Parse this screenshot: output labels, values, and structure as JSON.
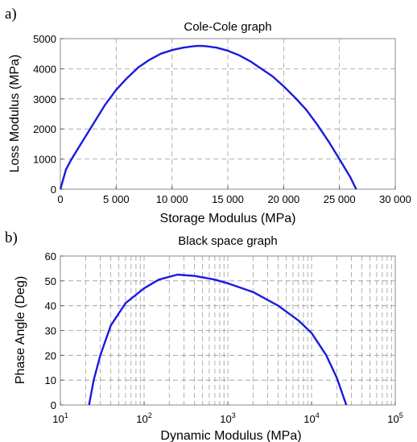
{
  "chart_data": [
    {
      "panel_label": "a)",
      "type": "line",
      "title": "Cole-Cole graph",
      "xlabel": "Storage Modulus (MPa)",
      "ylabel": "Loss Modulus (MPa)",
      "xlim": [
        0,
        30000
      ],
      "ylim": [
        0,
        5000
      ],
      "xscale": "linear",
      "grid": true,
      "x_ticks": [
        0,
        5000,
        10000,
        15000,
        20000,
        25000,
        30000
      ],
      "x_tick_labels": [
        "0",
        "5 000",
        "10 000",
        "15 000",
        "20 000",
        "25 000",
        "30 000"
      ],
      "y_ticks": [
        0,
        1000,
        2000,
        3000,
        4000,
        5000
      ],
      "y_tick_labels": [
        "0",
        "1000",
        "2000",
        "3000",
        "4000",
        "5000"
      ],
      "series": [
        {
          "color": "#1a1adf",
          "x": [
            0,
            500,
            1000,
            2000,
            3000,
            4000,
            5000,
            6000,
            7000,
            8000,
            9000,
            10000,
            11000,
            12000,
            12500,
            13000,
            14000,
            15000,
            16000,
            17000,
            18000,
            19000,
            20000,
            21000,
            22000,
            23000,
            24000,
            25000,
            26000,
            26500
          ],
          "y": [
            0,
            650,
            1000,
            1600,
            2200,
            2800,
            3300,
            3700,
            4050,
            4300,
            4500,
            4620,
            4700,
            4750,
            4760,
            4750,
            4700,
            4600,
            4450,
            4250,
            4000,
            3750,
            3420,
            3050,
            2650,
            2150,
            1600,
            1000,
            380,
            0
          ]
        }
      ]
    },
    {
      "panel_label": "b)",
      "type": "line",
      "title": "Black space graph",
      "xlabel": "Dynamic Modulus (MPa)",
      "ylabel": "Phase Angle (Deg)",
      "xlim": [
        10,
        100000
      ],
      "ylim": [
        0,
        60
      ],
      "xscale": "log",
      "grid": true,
      "x_ticks": [
        10,
        100,
        1000,
        10000,
        100000
      ],
      "x_tick_labels": [
        {
          "base": "10",
          "exp": "1"
        },
        {
          "base": "10",
          "exp": "2"
        },
        {
          "base": "10",
          "exp": "3"
        },
        {
          "base": "10",
          "exp": "4"
        },
        {
          "base": "10",
          "exp": "5"
        }
      ],
      "y_ticks": [
        0,
        10,
        20,
        30,
        40,
        50,
        60
      ],
      "y_tick_labels": [
        "0",
        "10",
        "20",
        "30",
        "40",
        "50",
        "60"
      ],
      "series": [
        {
          "color": "#1a1adf",
          "x": [
            22,
            25,
            30,
            40,
            60,
            100,
            150,
            250,
            400,
            700,
            1000,
            2000,
            4000,
            7000,
            10000,
            15000,
            20000,
            26000
          ],
          "y": [
            0,
            10,
            20,
            32,
            41,
            47,
            50.5,
            52.5,
            52,
            50.5,
            49,
            45.5,
            40,
            34,
            29,
            20,
            11,
            0
          ]
        }
      ]
    }
  ]
}
